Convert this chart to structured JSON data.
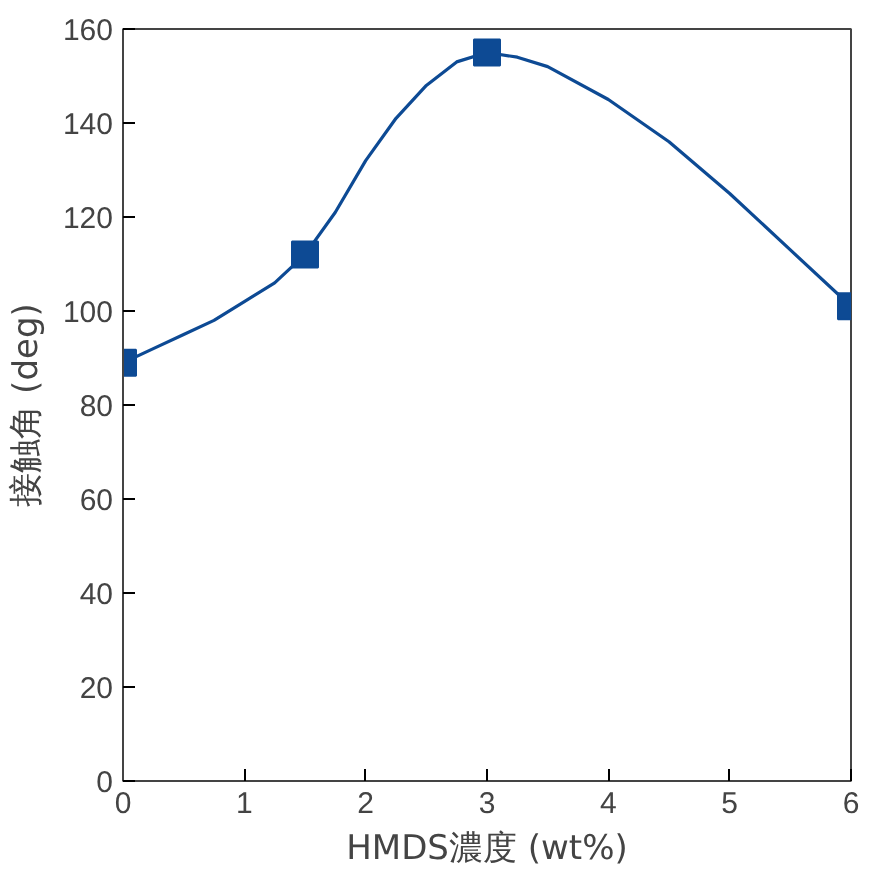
{
  "chart_data": {
    "type": "scatter",
    "xlabel": "HMDS濃度 (wt%)",
    "ylabel": "接触角 (deg)",
    "x": [
      0,
      1.5,
      3,
      6
    ],
    "series": [
      {
        "type": "line",
        "marker": "none",
        "color": "#0d4a94",
        "x": [
          0,
          0.25,
          0.5,
          0.75,
          1,
          1.25,
          1.5,
          1.75,
          2,
          2.25,
          2.5,
          2.75,
          3,
          3.25,
          3.5,
          4,
          4.5,
          5,
          5.5,
          6
        ],
        "values": [
          89,
          92,
          95,
          98,
          102,
          106,
          112,
          121,
          132,
          141,
          148,
          153,
          155,
          154,
          152,
          145,
          136,
          125,
          113,
          101
        ]
      },
      {
        "color": "#0d4a94",
        "values": [
          89,
          112,
          155,
          101
        ]
      }
    ],
    "xlim": [
      0,
      6
    ],
    "xticks": [
      0,
      1,
      2,
      3,
      4,
      5,
      6
    ],
    "ylim": [
      0,
      160
    ],
    "yticks": [
      0,
      20,
      40,
      60,
      80,
      100,
      120,
      140,
      160
    ],
    "marker": "square",
    "line_style": "solid"
  }
}
